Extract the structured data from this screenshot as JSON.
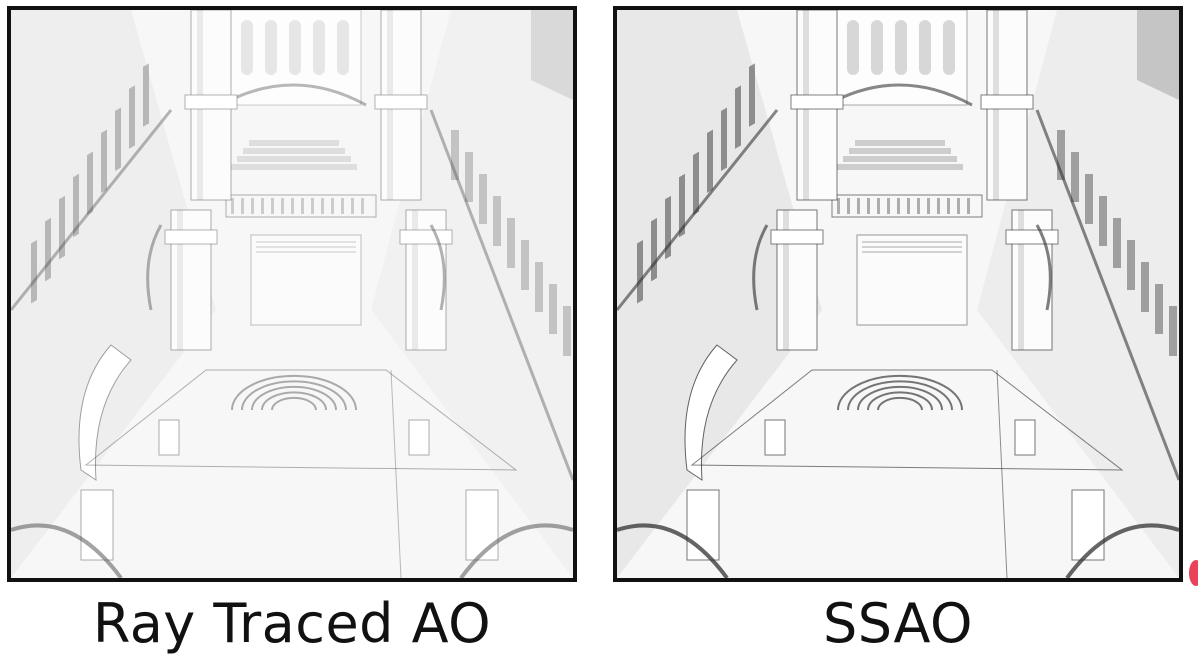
{
  "panels": [
    {
      "id": "left",
      "caption": "Ray Traced AO",
      "shade": "#4a4a4a",
      "soft": 0.28
    },
    {
      "id": "right",
      "caption": "SSAO",
      "shade": "#2a2a2a",
      "soft": 0.4
    }
  ],
  "colors": {
    "frame": "#111111",
    "background": "#f6f6f6",
    "marker": "#e8435a"
  }
}
